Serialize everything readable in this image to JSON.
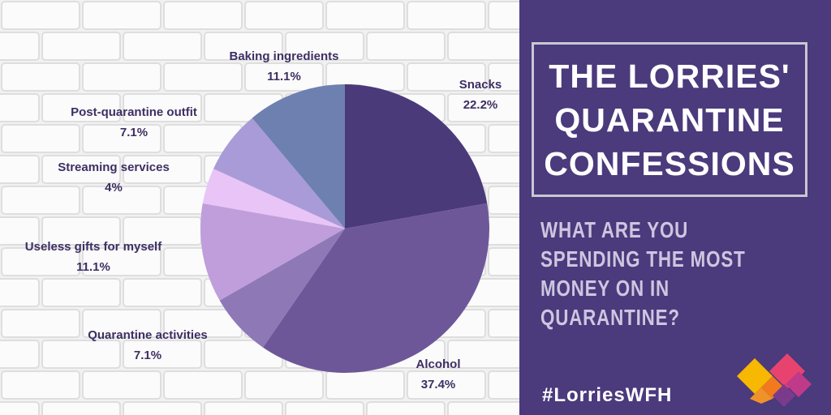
{
  "chart_data": {
    "type": "pie",
    "title": "THE LORRIES' QUARANTINE CONFESSIONS",
    "subtitle": "WHAT ARE YOU SPENDING THE MOST MONEY ON IN QUARANTINE?",
    "categories": [
      "Snacks",
      "Alcohol",
      "Quarantine activities",
      "Useless gifts for myself",
      "Streaming services",
      "Post-quarantine outfit",
      "Baking ingredients"
    ],
    "values": [
      22.2,
      37.4,
      7.1,
      11.1,
      4,
      7.1,
      11.1
    ],
    "value_labels": [
      "22.2%",
      "37.4%",
      "7.1%",
      "11.1%",
      "4%",
      "7.1%",
      "11.1%"
    ],
    "colors": [
      "#4a3a7a",
      "#6d5799",
      "#8f78b6",
      "#bf9edb",
      "#e9c4f6",
      "#a99bd7",
      "#6e80b0"
    ]
  },
  "hashtag": "#LorriesWFH"
}
